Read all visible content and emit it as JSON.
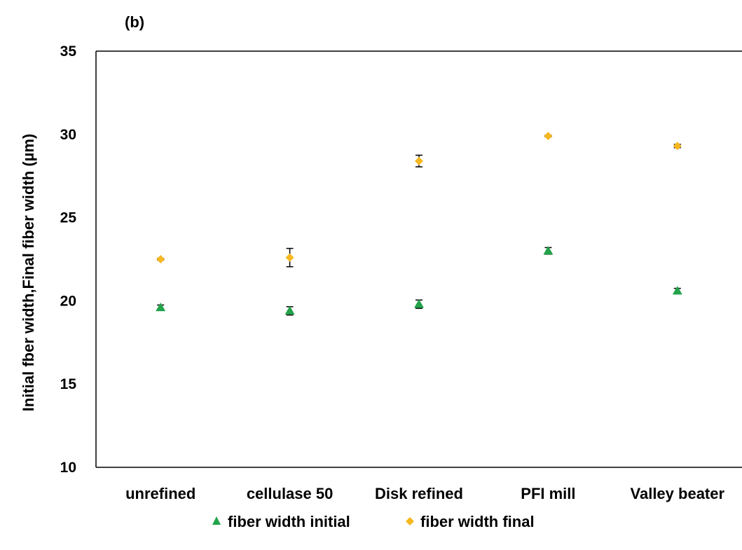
{
  "chart_data": {
    "type": "scatter",
    "panel_label": "(b)",
    "title": "",
    "xlabel": "",
    "ylabel": "Initial fber width,Final fiber width (µm)",
    "ylim": [
      10,
      35
    ],
    "yticks": [
      10,
      15,
      20,
      25,
      30,
      35
    ],
    "grid": false,
    "legend_position": "bottom",
    "categories": [
      "unrefined",
      "cellulase 50",
      "Disk refined",
      "PFI mill",
      "Valley beater"
    ],
    "series": [
      {
        "name": "fiber width initial",
        "marker": "triangle",
        "color": "#22a34a",
        "values": [
          19.6,
          19.4,
          19.8,
          23.0,
          20.6
        ],
        "errors": [
          0.15,
          0.25,
          0.25,
          0.2,
          0.15
        ]
      },
      {
        "name": "fiber width final",
        "marker": "diamond",
        "color": "#f5b820",
        "values": [
          22.5,
          22.6,
          28.4,
          29.9,
          29.3
        ],
        "errors": [
          0.05,
          0.55,
          0.35,
          0.05,
          0.1
        ]
      }
    ]
  }
}
